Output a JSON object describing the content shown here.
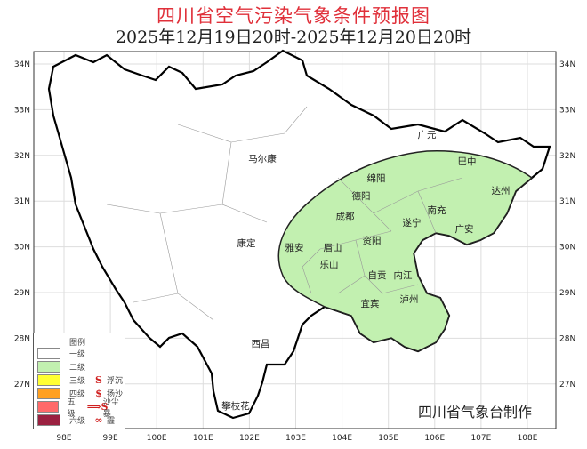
{
  "title": "四川省空气污染气象条件预报图",
  "subtitle": "2025年12月19日20时-2025年12月20日20时",
  "axes": {
    "lon_ticks": [
      "98E",
      "99E",
      "100E",
      "101E",
      "102E",
      "103E",
      "104E",
      "105E",
      "106E",
      "107E",
      "108E"
    ],
    "lat_ticks": [
      "34N",
      "33N",
      "32N",
      "31N",
      "30N",
      "29N",
      "28N",
      "27N"
    ]
  },
  "cities": [
    {
      "name": "广元"
    },
    {
      "name": "巴中"
    },
    {
      "name": "达州"
    },
    {
      "name": "绵阳"
    },
    {
      "name": "德阳"
    },
    {
      "name": "南充"
    },
    {
      "name": "成都"
    },
    {
      "name": "遂宁"
    },
    {
      "name": "广安"
    },
    {
      "name": "雅安"
    },
    {
      "name": "眉山"
    },
    {
      "name": "资阳"
    },
    {
      "name": "乐山"
    },
    {
      "name": "自贡"
    },
    {
      "name": "内江"
    },
    {
      "name": "泸州"
    },
    {
      "name": "宜宾"
    },
    {
      "name": "马尔康"
    },
    {
      "name": "康定"
    },
    {
      "name": "西昌"
    },
    {
      "name": "攀枝花"
    }
  ],
  "legend": {
    "title": "图例",
    "levels": [
      {
        "label": "一级",
        "color": "#ffffff"
      },
      {
        "label": "二级",
        "color": "#c2f0b0"
      },
      {
        "label": "三级",
        "color": "#ffff33",
        "symbol": "S",
        "symbol_label": "浮沉"
      },
      {
        "label": "四级",
        "color": "#ffa020",
        "symbol": "$",
        "symbol_label": "扬沙"
      },
      {
        "label": "五级",
        "color": "#ff6a6a",
        "symbol": "⟹S",
        "symbol_label": "沙尘暴"
      },
      {
        "label": "六级",
        "color": "#9a2040",
        "symbol": "∞",
        "symbol_label": "霾"
      }
    ]
  },
  "forecast_area_level": "二级",
  "credit": "四川省气象台制作"
}
